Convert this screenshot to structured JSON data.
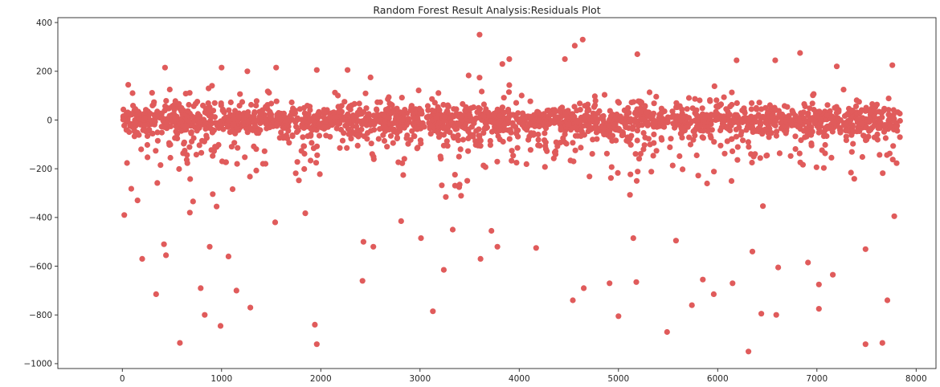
{
  "chart_data": {
    "type": "scatter",
    "title": "Random Forest Result Analysis:Residuals Plot",
    "xlabel": "",
    "ylabel": "",
    "xlim": [
      -650,
      8200
    ],
    "ylim": [
      -1020,
      420
    ],
    "x_ticks": [
      0,
      1000,
      2000,
      3000,
      4000,
      5000,
      6000,
      7000,
      8000
    ],
    "x_tick_labels": [
      "0",
      "1000",
      "2000",
      "3000",
      "4000",
      "5000",
      "6000",
      "7000",
      "8000"
    ],
    "y_ticks": [
      -1000,
      -800,
      -600,
      -400,
      -200,
      0,
      200,
      400
    ],
    "y_tick_labels": [
      "−1000",
      "−800",
      "−600",
      "−400",
      "−200",
      "0",
      "200",
      "400"
    ],
    "grid": false,
    "marker_color": "#e05b5b",
    "series": [
      {
        "points": [
          [
            20,
            -390
          ],
          [
            200,
            -570
          ],
          [
            340,
            -715
          ],
          [
            420,
            -510
          ],
          [
            440,
            -555
          ],
          [
            580,
            -915
          ],
          [
            680,
            -380
          ],
          [
            790,
            -690
          ],
          [
            830,
            -800
          ],
          [
            880,
            -520
          ],
          [
            950,
            -355
          ],
          [
            990,
            -845
          ],
          [
            1070,
            -560
          ],
          [
            1150,
            -700
          ],
          [
            1290,
            -770
          ],
          [
            1540,
            -420
          ],
          [
            1940,
            -840
          ],
          [
            1960,
            -920
          ],
          [
            2420,
            -660
          ],
          [
            2430,
            -500
          ],
          [
            2530,
            -520
          ],
          [
            2810,
            -415
          ],
          [
            3010,
            -485
          ],
          [
            3130,
            -785
          ],
          [
            3240,
            -615
          ],
          [
            3330,
            -450
          ],
          [
            3610,
            -570
          ],
          [
            3720,
            -455
          ],
          [
            3780,
            -520
          ],
          [
            4170,
            -525
          ],
          [
            4540,
            -740
          ],
          [
            4650,
            -690
          ],
          [
            4910,
            -670
          ],
          [
            5000,
            -805
          ],
          [
            5150,
            -485
          ],
          [
            5180,
            -665
          ],
          [
            5490,
            -870
          ],
          [
            5580,
            -495
          ],
          [
            5740,
            -760
          ],
          [
            5850,
            -655
          ],
          [
            5960,
            -715
          ],
          [
            6150,
            -670
          ],
          [
            6310,
            -950
          ],
          [
            6350,
            -540
          ],
          [
            6440,
            -795
          ],
          [
            6590,
            -800
          ],
          [
            6610,
            -605
          ],
          [
            6910,
            -585
          ],
          [
            7020,
            -775
          ],
          [
            7020,
            -675
          ],
          [
            7160,
            -635
          ],
          [
            7490,
            -920
          ],
          [
            7490,
            -530
          ],
          [
            7660,
            -915
          ],
          [
            7710,
            -740
          ],
          [
            7780,
            -395
          ],
          [
            3600,
            350
          ],
          [
            4640,
            330
          ],
          [
            4560,
            305
          ],
          [
            6830,
            275
          ],
          [
            5190,
            270
          ],
          [
            3900,
            250
          ],
          [
            4460,
            250
          ],
          [
            6190,
            245
          ],
          [
            6580,
            245
          ],
          [
            430,
            215
          ],
          [
            1000,
            215
          ],
          [
            1550,
            215
          ],
          [
            7200,
            220
          ],
          [
            7760,
            225
          ],
          [
            1260,
            200
          ],
          [
            1960,
            205
          ],
          [
            2270,
            205
          ],
          [
            3830,
            230
          ]
        ]
      }
    ]
  }
}
